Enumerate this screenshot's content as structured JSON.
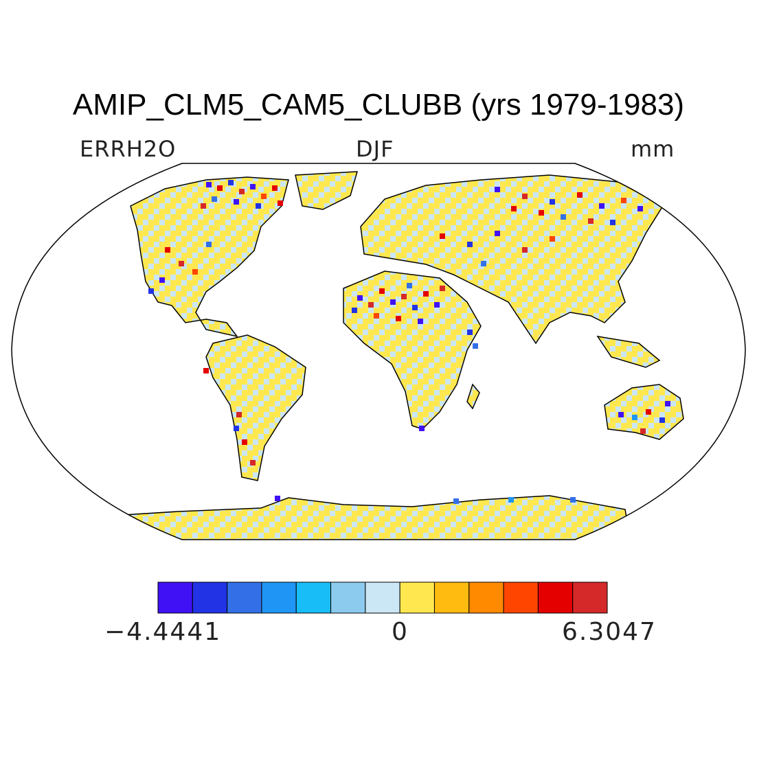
{
  "title": "AMIP_CLM5_CAM5_CLUBB (yrs 1979-1983)",
  "variable": "ERRH2O",
  "season": "DJF",
  "units": "mm",
  "colorbar": {
    "min_label": "−4.4441",
    "mid_label": "0",
    "max_label": "6.3047",
    "colors": [
      "#4011f5",
      "#2233e6",
      "#3370e8",
      "#1f96f5",
      "#18bdf7",
      "#8ccbee",
      "#cbe6f5",
      "#ffe84f",
      "#ffbb10",
      "#ff8a00",
      "#ff4500",
      "#e50000",
      "#d52828"
    ]
  },
  "map": {
    "projection": "Robinson",
    "ocean_color": "#ffffff",
    "land_base_color": "#ffe84f"
  }
}
